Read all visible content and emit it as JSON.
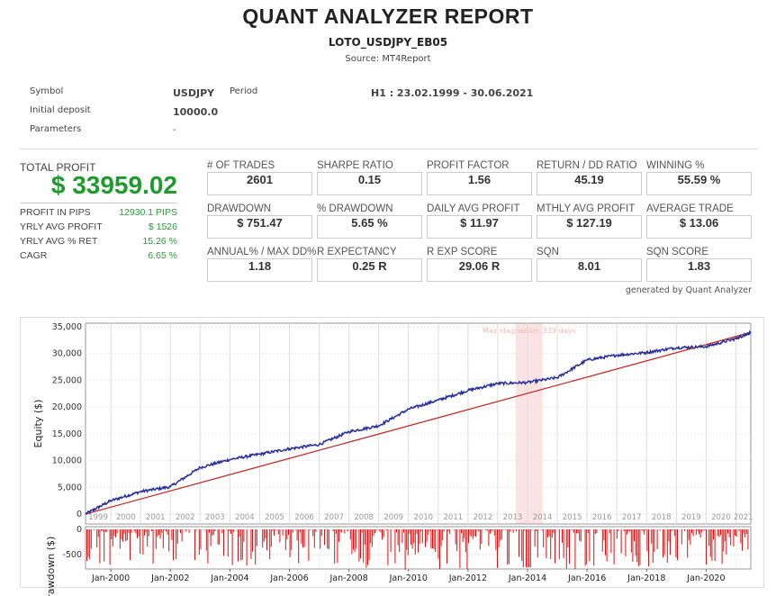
{
  "header": {
    "title": "QUANT ANALYZER REPORT",
    "subtitle": "LOTO_USDJPY_EB05",
    "source": "Source: MT4Report"
  },
  "info": {
    "symbol_label": "Symbol",
    "symbol": "USDJPY",
    "period_label": "Period",
    "period": "H1 : 23.02.1999 - 30.06.2021",
    "deposit_label": "Initial deposit",
    "deposit": "10000.0",
    "params_label": "Parameters",
    "params": "-"
  },
  "summary": {
    "total_profit_label": "TOTAL PROFIT",
    "total_profit": "$ 33959.02",
    "rows": [
      {
        "label": "PROFIT IN PIPS",
        "value": "12930.1 PIPS"
      },
      {
        "label": "YRLY AVG PROFIT",
        "value": "$ 1526"
      },
      {
        "label": "YRLY AVG % RET",
        "value": "15.26 %"
      },
      {
        "label": "CAGR",
        "value": "6.65 %"
      }
    ]
  },
  "metrics": [
    {
      "label": "# OF TRADES",
      "value": "2601"
    },
    {
      "label": "SHARPE RATIO",
      "value": "0.15"
    },
    {
      "label": "PROFIT FACTOR",
      "value": "1.56"
    },
    {
      "label": "RETURN / DD RATIO",
      "value": "45.19"
    },
    {
      "label": "WINNING %",
      "value": "55.59 %"
    },
    {
      "label": "DRAWDOWN",
      "value": "$ 751.47"
    },
    {
      "label": "% DRAWDOWN",
      "value": "5.65 %"
    },
    {
      "label": "DAILY AVG PROFIT",
      "value": "$ 11.97"
    },
    {
      "label": "MTHLY AVG PROFIT",
      "value": "$ 127.19"
    },
    {
      "label": "AVERAGE TRADE",
      "value": "$ 13.06"
    },
    {
      "label": "ANNUAL% / MAX DD%",
      "value": "1.18"
    },
    {
      "label": "R EXPECTANCY",
      "value": "0.25 R"
    },
    {
      "label": "R EXP SCORE",
      "value": "29.06 R"
    },
    {
      "label": "SQN",
      "value": "8.01"
    },
    {
      "label": "SQN SCORE",
      "value": "1.83"
    }
  ],
  "generated_by": "generated by Quant Analyzer",
  "chart_data": [
    {
      "type": "line",
      "ylabel": "Equity ($)",
      "ylim": [
        0,
        35000
      ],
      "yticks": [
        "0",
        "5,000",
        "10,000",
        "15,000",
        "20,000",
        "25,000",
        "30,000",
        "35,000"
      ],
      "xlim": [
        1999.15,
        2021.5
      ],
      "year_labels": [
        "1999",
        "2000",
        "2001",
        "2002",
        "2003",
        "2004",
        "2005",
        "2006",
        "2007",
        "2008",
        "2009",
        "2010",
        "2011",
        "2012",
        "2013",
        "2014",
        "2015",
        "2016",
        "2017",
        "2018",
        "2019",
        "2020",
        "2021"
      ],
      "grid": true,
      "series": [
        {
          "color": "#2b2f9a",
          "x": [
            1999.15,
            2000,
            2001,
            2002,
            2003,
            2004,
            2005,
            2006,
            2007,
            2008,
            2009,
            2010,
            2011,
            2012,
            2013,
            2014,
            2015,
            2016,
            2017,
            2018,
            2019,
            2020,
            2021,
            2021.5
          ],
          "values": [
            0,
            2500,
            4200,
            5100,
            8700,
            10200,
            11200,
            12200,
            13000,
            15400,
            16500,
            19600,
            21300,
            23100,
            24400,
            24600,
            25500,
            28800,
            29700,
            30200,
            31100,
            31300,
            32800,
            33959
          ]
        },
        {
          "color": "#c0302a",
          "x": [
            1999.15,
            2021.5
          ],
          "values": [
            0,
            33959
          ]
        }
      ],
      "annotation": {
        "text": "Max stagnation: 339 days",
        "from": 2013.6,
        "to": 2014.5,
        "color": "#fbe3e3"
      }
    },
    {
      "type": "bar",
      "ylabel": "Drawdown ($)",
      "ylim": [
        -800,
        0
      ],
      "yticks": [
        "0",
        "-500"
      ],
      "xticks": [
        "Jan-2000",
        "Jan-2002",
        "Jan-2004",
        "Jan-2006",
        "Jan-2008",
        "Jan-2010",
        "Jan-2012",
        "Jan-2014",
        "Jan-2016",
        "Jan-2018",
        "Jan-2020"
      ],
      "max_drawdown": -751.47,
      "color": "#e01010"
    }
  ]
}
